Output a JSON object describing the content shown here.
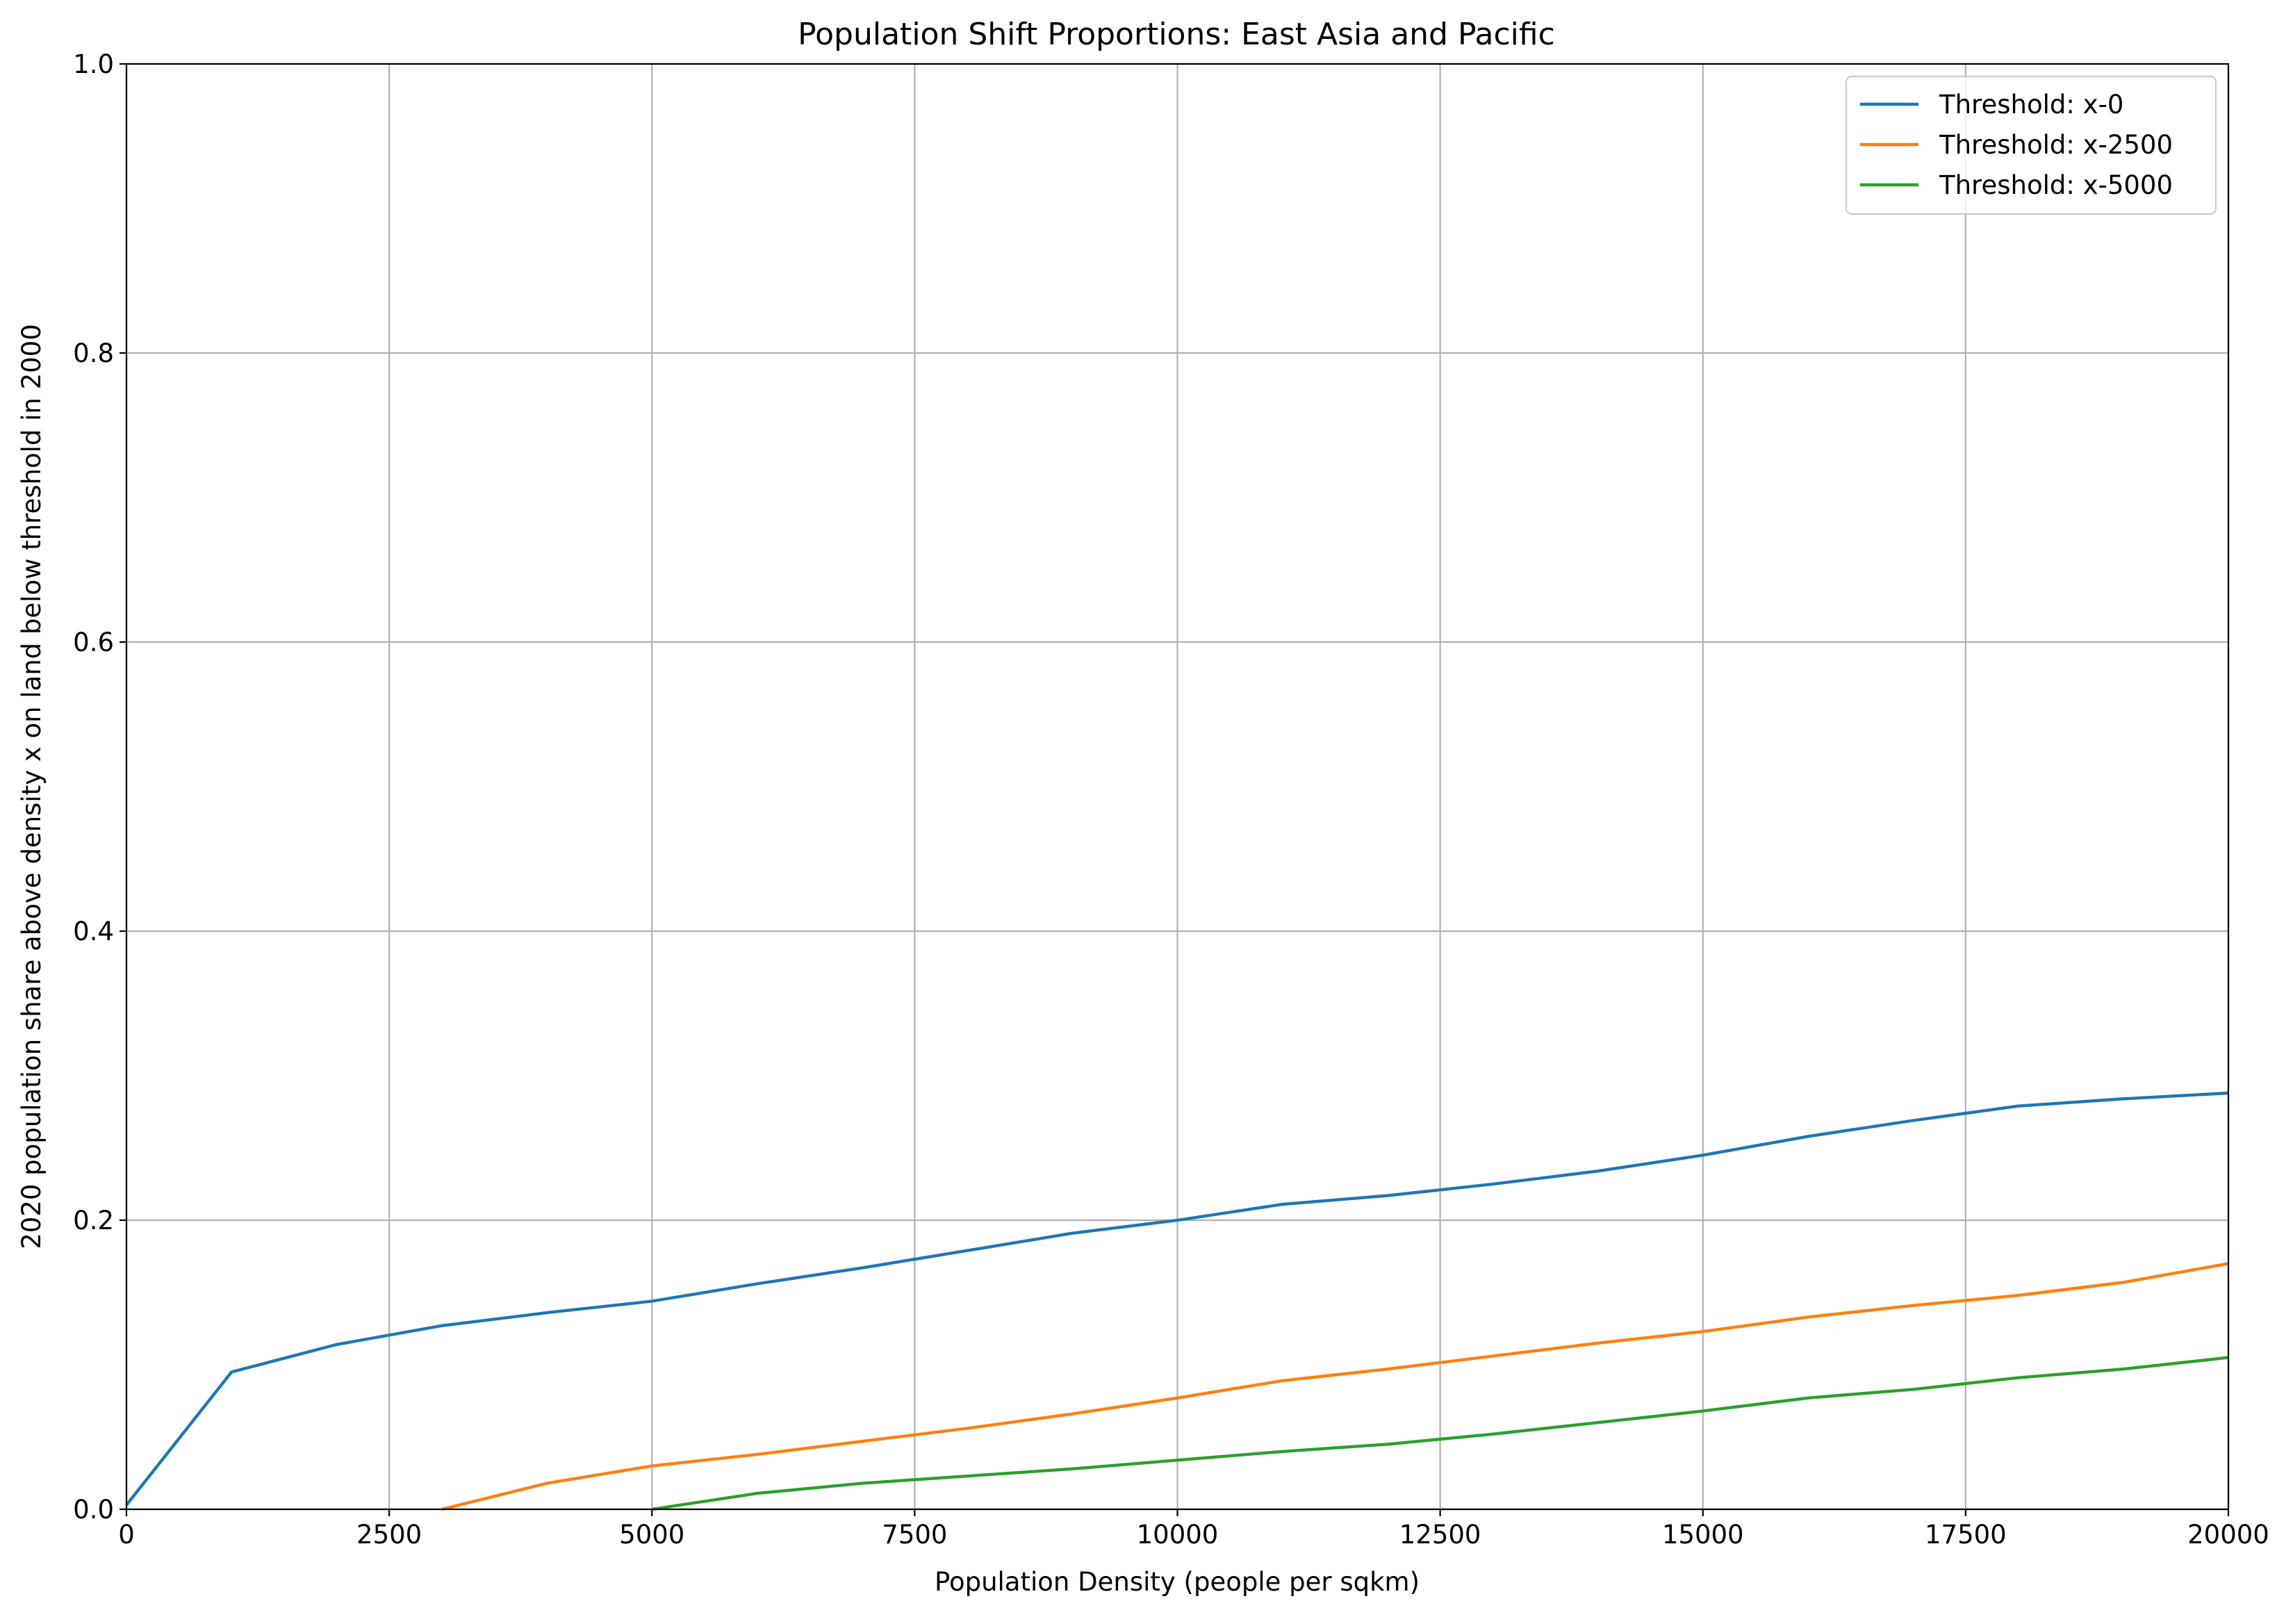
{
  "chart_data": {
    "type": "line",
    "title": "Population Shift Proportions: East Asia and Pacific",
    "xlabel": "Population Density (people per sqkm)",
    "ylabel": "2020 population share above density x on land below threshold in 2000",
    "xlim": [
      0,
      20000
    ],
    "ylim": [
      0.0,
      1.0
    ],
    "xticks": [
      0,
      2500,
      5000,
      7500,
      10000,
      12500,
      15000,
      17500,
      20000
    ],
    "xtick_labels": [
      "0",
      "2500",
      "5000",
      "7500",
      "10000",
      "12500",
      "15000",
      "17500",
      "20000"
    ],
    "yticks": [
      0.0,
      0.2,
      0.4,
      0.6,
      0.8,
      1.0
    ],
    "ytick_labels": [
      "0.0",
      "0.2",
      "0.4",
      "0.6",
      "0.8",
      "1.0"
    ],
    "grid": true,
    "legend_position": "top-right",
    "series": [
      {
        "name": "Threshold: x-0",
        "color": "#1f77b4",
        "x": [
          0,
          1000,
          2000,
          3000,
          4000,
          5000,
          6000,
          7000,
          8000,
          9000,
          10000,
          11000,
          12000,
          13000,
          14000,
          15000,
          16000,
          17000,
          18000,
          19000,
          20000
        ],
        "y": [
          0.003,
          0.095,
          0.114,
          0.127,
          0.136,
          0.144,
          0.156,
          0.167,
          0.179,
          0.191,
          0.2,
          0.211,
          0.217,
          0.225,
          0.234,
          0.245,
          0.258,
          0.269,
          0.279,
          0.284,
          0.288
        ]
      },
      {
        "name": "Threshold: x-2500",
        "color": "#ff7f0e",
        "x": [
          3000,
          4000,
          5000,
          6000,
          7000,
          8000,
          9000,
          10000,
          11000,
          12000,
          13000,
          14000,
          15000,
          16000,
          17000,
          18000,
          19000,
          20000
        ],
        "y": [
          0.0,
          0.018,
          0.03,
          0.038,
          0.047,
          0.056,
          0.066,
          0.077,
          0.089,
          0.097,
          0.106,
          0.115,
          0.123,
          0.133,
          0.141,
          0.148,
          0.157,
          0.17
        ]
      },
      {
        "name": "Threshold: x-5000",
        "color": "#2ca02c",
        "x": [
          5000,
          6000,
          7000,
          8000,
          9000,
          10000,
          11000,
          12000,
          13000,
          14000,
          15000,
          16000,
          17000,
          18000,
          19000,
          20000
        ],
        "y": [
          0.0,
          0.011,
          0.018,
          0.023,
          0.028,
          0.034,
          0.04,
          0.045,
          0.052,
          0.06,
          0.068,
          0.077,
          0.083,
          0.091,
          0.097,
          0.105
        ]
      }
    ]
  }
}
